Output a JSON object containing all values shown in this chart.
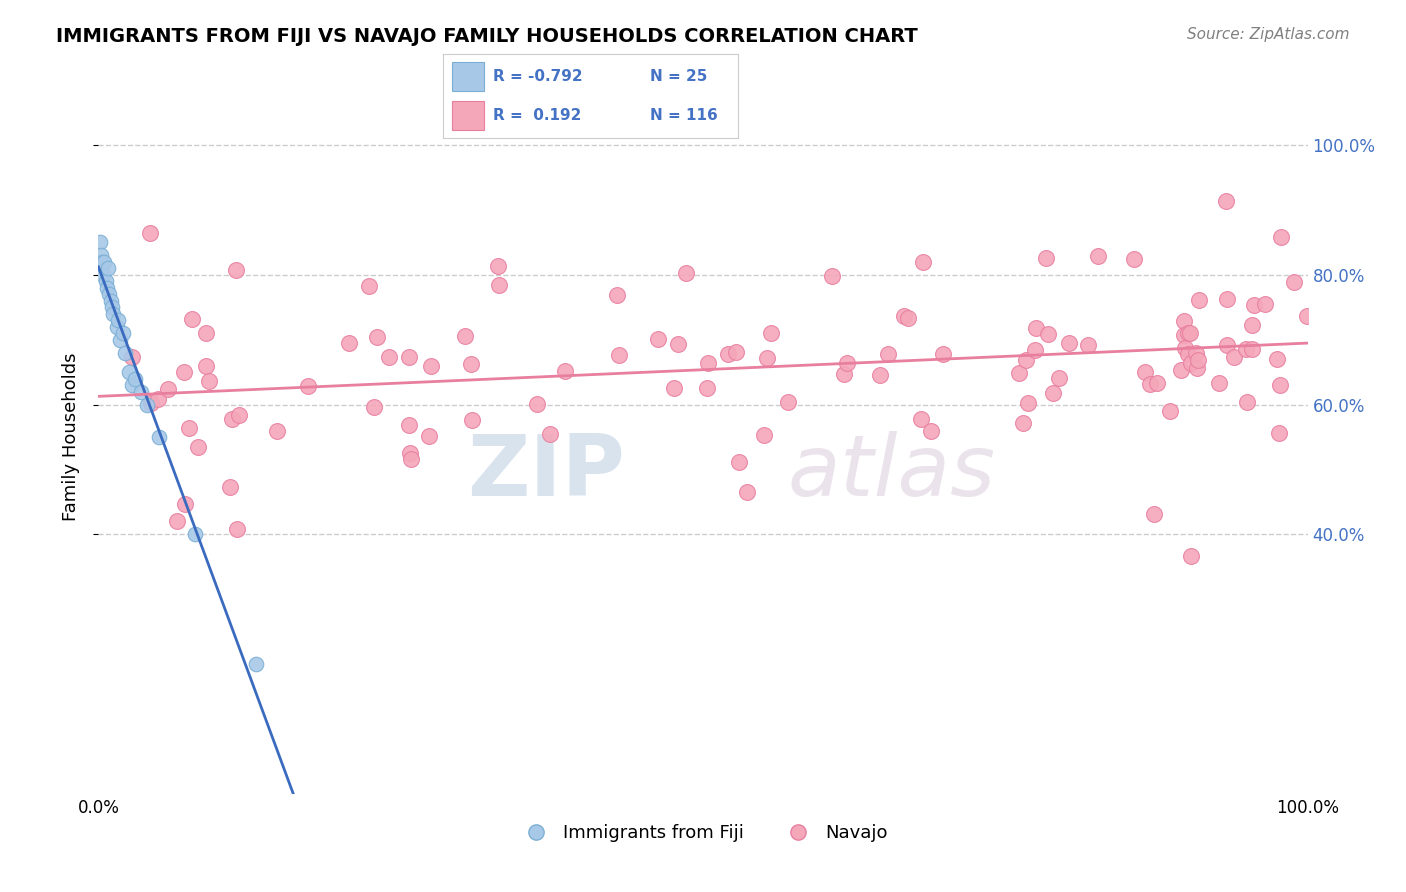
{
  "title": "IMMIGRANTS FROM FIJI VS NAVAJO FAMILY HOUSEHOLDS CORRELATION CHART",
  "source_text": "Source: ZipAtlas.com",
  "ylabel": "Family Households",
  "xlim": [
    0,
    100
  ],
  "ylim": [
    0,
    110
  ],
  "xtick_labels": [
    "0.0%",
    "100.0%"
  ],
  "ytick_labels_right": [
    "40.0%",
    "60.0%",
    "80.0%",
    "100.0%"
  ],
  "ytick_positions_right": [
    40,
    60,
    80,
    100
  ],
  "grid_color": "#cccccc",
  "background_color": "#ffffff",
  "watermark_zip": "ZIP",
  "watermark_atlas": "atlas",
  "fiji_color": "#a8c8e8",
  "fiji_edge_color": "#7aafd4",
  "navajo_color": "#f4a7b9",
  "navajo_edge_color": "#e87fa0",
  "fiji_line_color": "#3a6bbf",
  "navajo_line_color": "#e87f9e",
  "legend_fiji_R": "-0.792",
  "legend_fiji_N": "25",
  "legend_navajo_R": "0.192",
  "legend_navajo_N": "116"
}
